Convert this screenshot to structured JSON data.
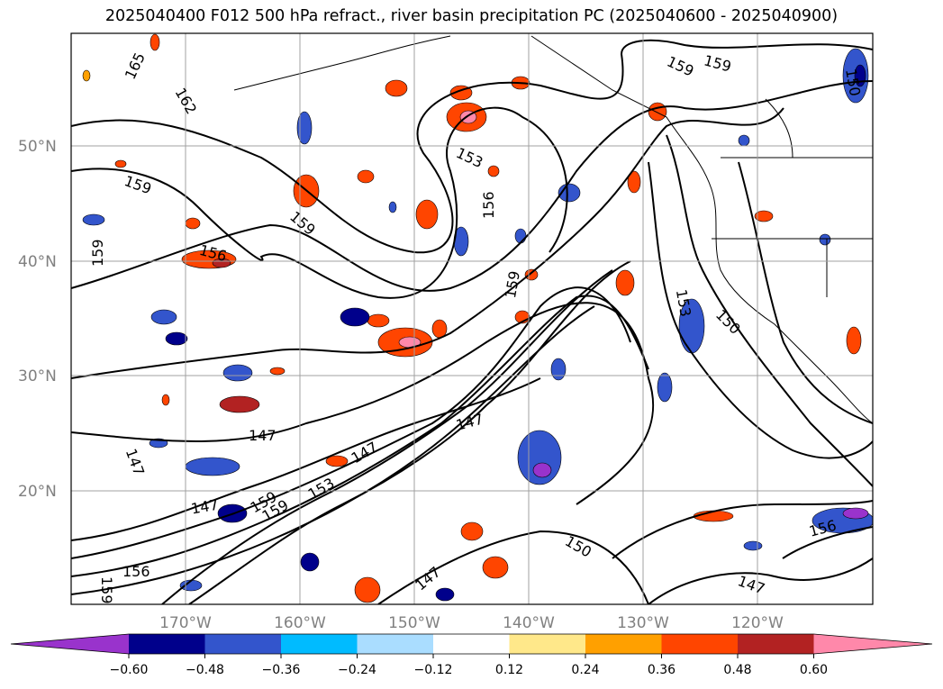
{
  "title": "2025040400 F012 500 hPa refract., river basin precipitation PC (2025040600 - 2025040900)",
  "map": {
    "lat_labels": [
      "50°N",
      "40°N",
      "30°N",
      "20°N"
    ],
    "lon_labels": [
      "170°W",
      "160°W",
      "150°W",
      "140°W",
      "130°W",
      "120°W"
    ],
    "contour_labels": [
      "165",
      "162",
      "159",
      "159",
      "159",
      "156",
      "156",
      "153",
      "153",
      "150",
      "147",
      "147",
      "147",
      "147",
      "147",
      "147",
      "159",
      "150",
      "159",
      "156",
      "159",
      "159",
      "150",
      "159",
      "153",
      "147",
      "156",
      "159"
    ]
  },
  "colorbar": {
    "ticks": [
      "−0.60",
      "−0.48",
      "−0.36",
      "−0.24",
      "−0.12",
      "0.12",
      "0.24",
      "0.36",
      "0.48",
      "0.60"
    ],
    "colors": [
      "#9933cc",
      "#00008b",
      "#3355cc",
      "#00bbff",
      "#aaddff",
      "#ffffff",
      "#ffe88a",
      "#ffa000",
      "#ff4500",
      "#b22222",
      "#ff88aa"
    ]
  }
}
